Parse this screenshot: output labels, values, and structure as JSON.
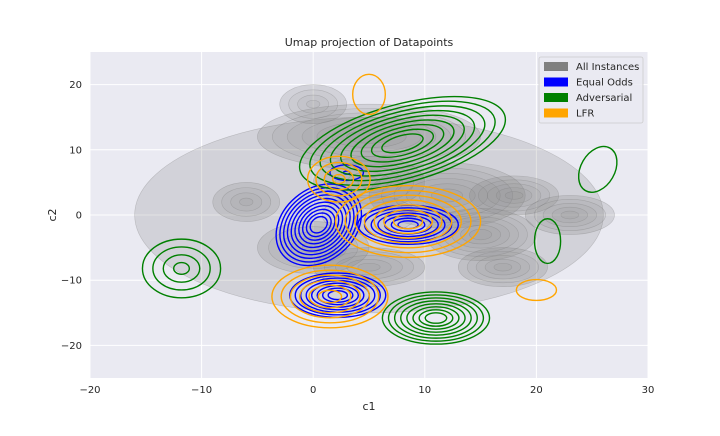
{
  "chart_data": {
    "type": "contour",
    "title": "Umap projection of Datapoints",
    "xlabel": "c1",
    "ylabel": "c2",
    "xlim": [
      -20,
      30
    ],
    "ylim": [
      -25,
      25
    ],
    "xticks": [
      -20,
      -10,
      0,
      10,
      20,
      30
    ],
    "yticks": [
      -20,
      -10,
      0,
      10,
      20
    ],
    "grid": true,
    "legend_position": "top-right",
    "series": [
      {
        "name": "All Instances",
        "color": "#808080",
        "style": "filled",
        "clusters": [
          {
            "x": 5,
            "y": 0,
            "rx": 21,
            "ry": 15,
            "levels": 2
          },
          {
            "x": 5,
            "y": 12,
            "rx": 10,
            "ry": 5,
            "levels": 7
          },
          {
            "x": 5,
            "y": 5,
            "rx": 5,
            "ry": 4,
            "levels": 5
          },
          {
            "x": 12,
            "y": 3,
            "rx": 7,
            "ry": 5,
            "levels": 6
          },
          {
            "x": 18,
            "y": 3,
            "rx": 4,
            "ry": 3,
            "levels": 5
          },
          {
            "x": 15,
            "y": -3,
            "rx": 5,
            "ry": 4,
            "levels": 6
          },
          {
            "x": 23,
            "y": 0,
            "rx": 4,
            "ry": 3,
            "levels": 5
          },
          {
            "x": 17,
            "y": -8,
            "rx": 4,
            "ry": 3,
            "levels": 5
          },
          {
            "x": -6,
            "y": 2,
            "rx": 3,
            "ry": 3,
            "levels": 4
          },
          {
            "x": 0,
            "y": -5,
            "rx": 5,
            "ry": 4,
            "levels": 5
          },
          {
            "x": 5,
            "y": -8,
            "rx": 5,
            "ry": 3,
            "levels": 5
          },
          {
            "x": 0,
            "y": 17,
            "rx": 3,
            "ry": 3,
            "levels": 4
          }
        ]
      },
      {
        "name": "Equal Odds",
        "color": "#0000ff",
        "style": "lines",
        "clusters": [
          {
            "x": 0.5,
            "y": -1.5,
            "rx": 4.2,
            "ry": 5.5,
            "rot": 40,
            "levels": 10
          },
          {
            "x": 8.5,
            "y": -1.5,
            "rx": 4.5,
            "ry": 3,
            "rot": 0,
            "levels": 7
          },
          {
            "x": 2.2,
            "y": -12.3,
            "rx": 4.3,
            "ry": 3.4,
            "rot": 0,
            "levels": 8
          },
          {
            "x": 3,
            "y": 6.5,
            "rx": 1.5,
            "ry": 1.2,
            "rot": 0,
            "levels": 2
          }
        ]
      },
      {
        "name": "Adversarial",
        "color": "#008000",
        "style": "lines",
        "clusters": [
          {
            "x": 8,
            "y": 11,
            "rx": 9.5,
            "ry": 6,
            "rot": 15,
            "levels": 9
          },
          {
            "x": 11,
            "y": -15.8,
            "rx": 4.8,
            "ry": 4,
            "rot": 0,
            "levels": 8
          },
          {
            "x": -11.8,
            "y": -8.2,
            "rx": 3.5,
            "ry": 4.5,
            "rot": 0,
            "levels": 4
          },
          {
            "x": 25.5,
            "y": 7,
            "rx": 2.2,
            "ry": 2.6,
            "rot": 60,
            "levels": 1
          },
          {
            "x": 21,
            "y": -4,
            "rx": 2,
            "ry": 2,
            "rot": 90,
            "levels": 1
          }
        ]
      },
      {
        "name": "LFR",
        "color": "#ffa500",
        "style": "lines",
        "clusters": [
          {
            "x": 8.5,
            "y": -1,
            "rx": 6.5,
            "ry": 5.5,
            "rot": 0,
            "levels": 7
          },
          {
            "x": 1.5,
            "y": -12.5,
            "rx": 5.2,
            "ry": 4.8,
            "rot": 0,
            "levels": 6
          },
          {
            "x": 2.3,
            "y": 5.5,
            "rx": 2.8,
            "ry": 3.5,
            "rot": 0,
            "levels": 4
          },
          {
            "x": 5,
            "y": 18.5,
            "rx": 1.8,
            "ry": 2.5,
            "rot": 90,
            "levels": 1
          },
          {
            "x": 20,
            "y": -11.5,
            "rx": 1.8,
            "ry": 1.6,
            "rot": 0,
            "levels": 1
          }
        ]
      }
    ]
  }
}
